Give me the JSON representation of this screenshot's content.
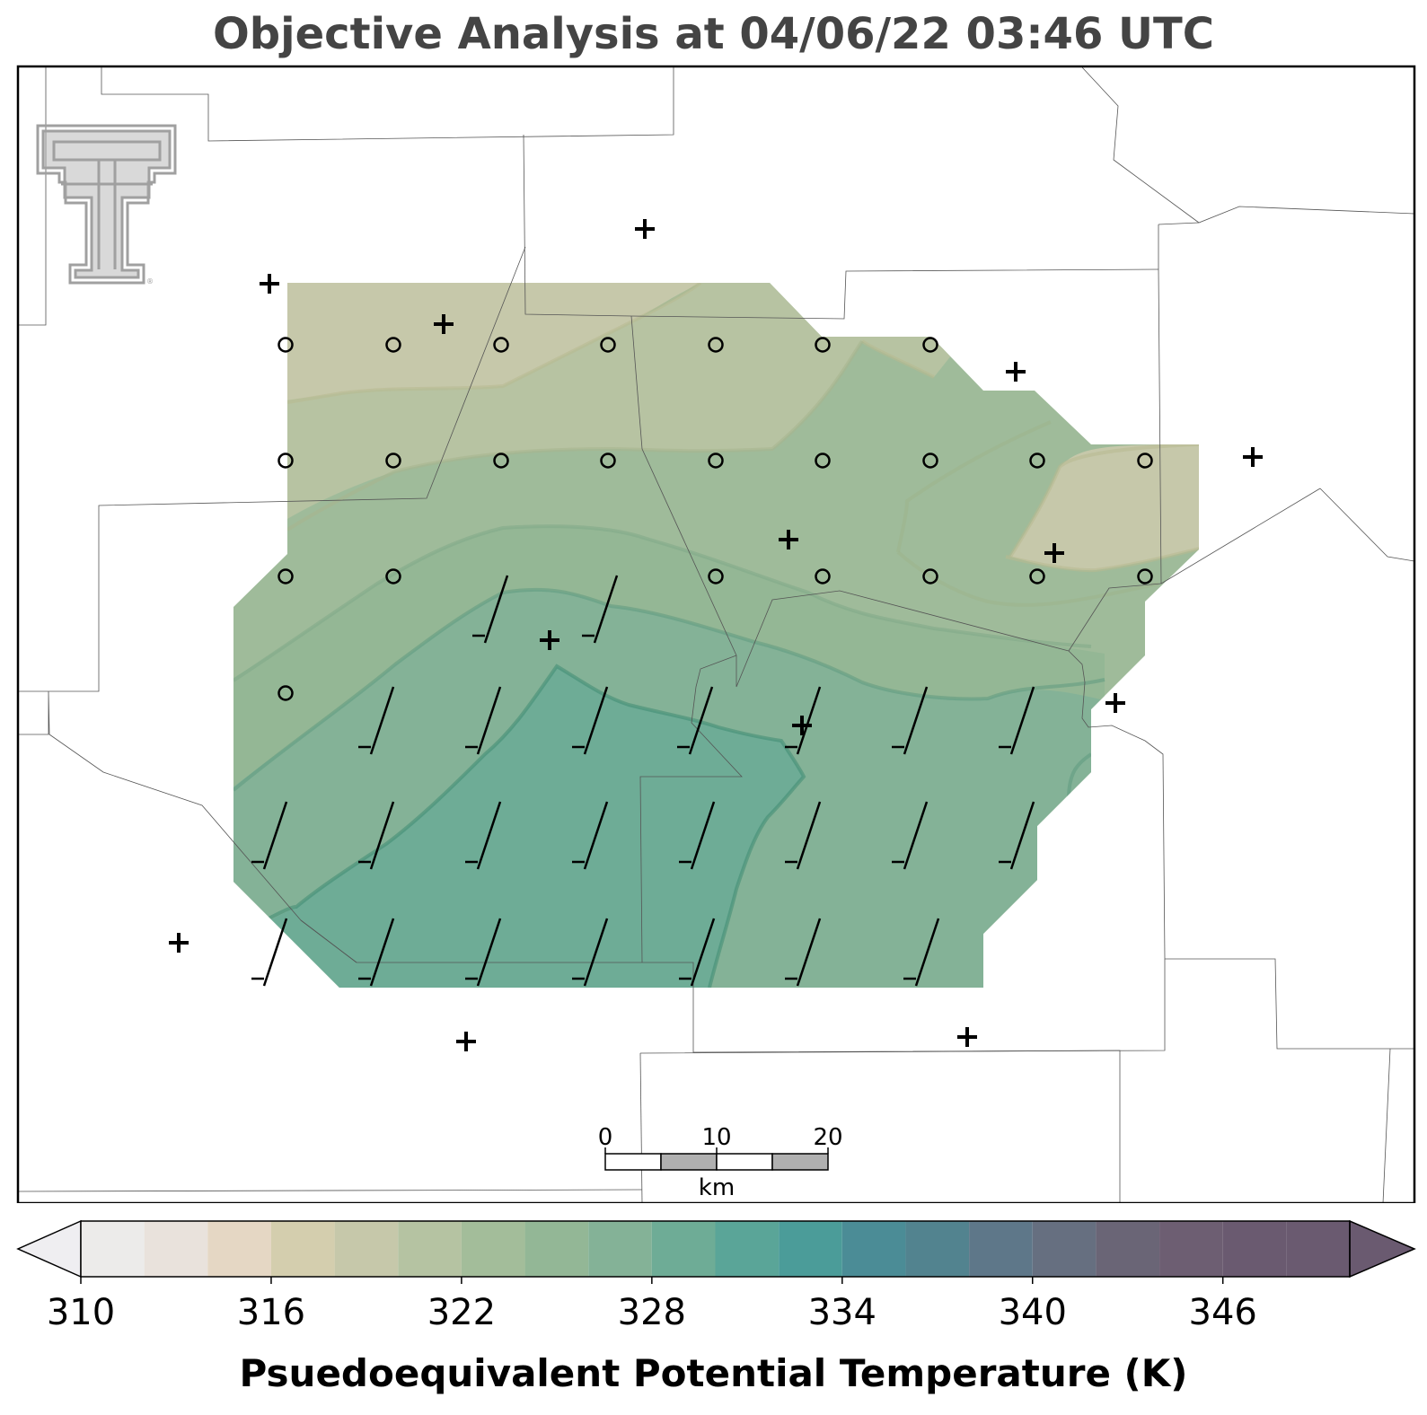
{
  "title": "Objective Analysis at 04/06/22 03:46 UTC",
  "colorbar": {
    "label": "Psuedoequivalent Potential Temperature (K)",
    "ticks": [
      310,
      316,
      322,
      328,
      334,
      340,
      346
    ],
    "min": 310,
    "max": 350,
    "step": 2,
    "extend": "both",
    "colors": [
      "#efeef1",
      "#ecebea",
      "#e9e2dc",
      "#e5d7c4",
      "#d4ceae",
      "#c6c8aa",
      "#b5c3a2",
      "#a3bd9a",
      "#93b796",
      "#84b297",
      "#6eac96",
      "#5aa598",
      "#4b9c99",
      "#4b8c96",
      "#52838f",
      "#5e7789",
      "#666f80",
      "#6a6576",
      "#6d5e72",
      "#6a5a70"
    ]
  },
  "scale_bar": {
    "ticks": [
      "0",
      "10",
      "20"
    ],
    "unit": "km"
  },
  "logo": {
    "icon": "texas-tech-double-t-logo"
  },
  "station_markers": {
    "icon": "plus-marker"
  },
  "grid_markers": {
    "calm": "circle-marker",
    "wind": "wind-barb"
  }
}
